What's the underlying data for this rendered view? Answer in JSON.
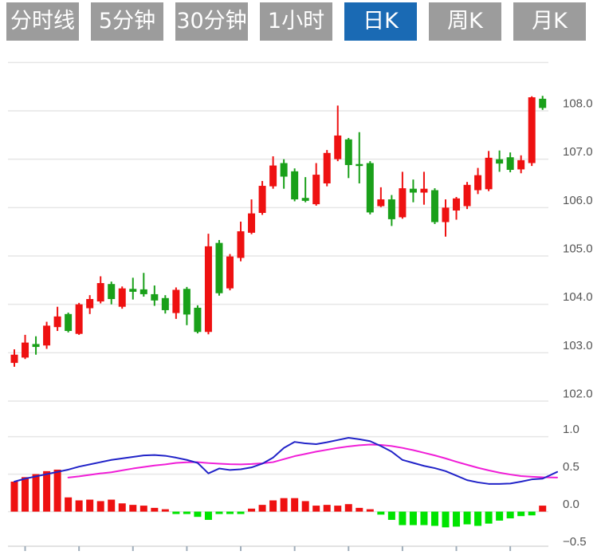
{
  "tabs": {
    "active_index": 4,
    "active_bg": "#1a6ab4",
    "inactive_bg": "#9c9c9c",
    "text_color": "#ffffff",
    "items": [
      {
        "label": "分时线"
      },
      {
        "label": "5分钟"
      },
      {
        "label": "30分钟"
      },
      {
        "label": "1小时"
      },
      {
        "label": "日K"
      },
      {
        "label": "周K"
      },
      {
        "label": "月K"
      }
    ]
  },
  "chart_data": {
    "type": "candlestick+macd",
    "title": "",
    "legend": "none",
    "grid": "on",
    "price_axis": {
      "side": "right",
      "labels": [
        "108.0",
        "107.0",
        "106.0",
        "105.0",
        "104.0",
        "103.0",
        "102.0"
      ],
      "values": [
        108,
        107,
        106,
        105,
        104,
        103,
        102
      ],
      "grid_values": [
        109,
        108,
        107,
        106,
        105,
        104,
        103,
        102
      ],
      "range": [
        101.8,
        109.0
      ]
    },
    "macd_axis": {
      "side": "right",
      "labels": [
        "1.0",
        "0.5",
        "0.0",
        "−0.5"
      ],
      "values": [
        1.0,
        0.5,
        0.0,
        -0.5
      ],
      "grid_values": [
        1.0,
        0.5,
        0.0
      ],
      "range": [
        -0.5,
        1.0
      ]
    },
    "candles": [
      {
        "o": 102.79,
        "h": 103.07,
        "l": 102.71,
        "c": 102.96
      },
      {
        "o": 102.9,
        "h": 103.37,
        "l": 102.87,
        "c": 103.21
      },
      {
        "o": 103.18,
        "h": 103.34,
        "l": 102.96,
        "c": 103.12
      },
      {
        "o": 103.15,
        "h": 103.64,
        "l": 103.08,
        "c": 103.56
      },
      {
        "o": 103.53,
        "h": 103.95,
        "l": 103.45,
        "c": 103.75
      },
      {
        "o": 103.8,
        "h": 103.83,
        "l": 103.42,
        "c": 103.45
      },
      {
        "o": 103.39,
        "h": 104.03,
        "l": 103.37,
        "c": 104.0
      },
      {
        "o": 103.92,
        "h": 104.19,
        "l": 103.8,
        "c": 104.11
      },
      {
        "o": 104.06,
        "h": 104.58,
        "l": 104.02,
        "c": 104.44
      },
      {
        "o": 104.42,
        "h": 104.47,
        "l": 104.0,
        "c": 104.11
      },
      {
        "o": 103.95,
        "h": 104.37,
        "l": 103.91,
        "c": 104.33
      },
      {
        "o": 104.32,
        "h": 104.55,
        "l": 104.1,
        "c": 104.26
      },
      {
        "o": 104.31,
        "h": 104.65,
        "l": 104.16,
        "c": 104.21
      },
      {
        "o": 104.21,
        "h": 104.39,
        "l": 103.97,
        "c": 104.08
      },
      {
        "o": 104.13,
        "h": 104.19,
        "l": 103.81,
        "c": 103.88
      },
      {
        "o": 103.82,
        "h": 104.35,
        "l": 103.7,
        "c": 104.3
      },
      {
        "o": 104.32,
        "h": 104.36,
        "l": 103.57,
        "c": 103.79
      },
      {
        "o": 103.93,
        "h": 103.98,
        "l": 103.4,
        "c": 103.43
      },
      {
        "o": 103.43,
        "h": 105.46,
        "l": 103.38,
        "c": 105.2
      },
      {
        "o": 105.27,
        "h": 105.33,
        "l": 104.18,
        "c": 104.23
      },
      {
        "o": 104.33,
        "h": 105.04,
        "l": 104.29,
        "c": 104.99
      },
      {
        "o": 104.96,
        "h": 105.71,
        "l": 104.89,
        "c": 105.51
      },
      {
        "o": 105.48,
        "h": 106.17,
        "l": 105.45,
        "c": 105.88
      },
      {
        "o": 105.89,
        "h": 106.55,
        "l": 105.85,
        "c": 106.45
      },
      {
        "o": 106.44,
        "h": 107.06,
        "l": 106.39,
        "c": 106.87
      },
      {
        "o": 106.92,
        "h": 107.0,
        "l": 106.39,
        "c": 106.64
      },
      {
        "o": 106.75,
        "h": 106.81,
        "l": 106.13,
        "c": 106.17
      },
      {
        "o": 106.2,
        "h": 106.63,
        "l": 106.11,
        "c": 106.14
      },
      {
        "o": 106.07,
        "h": 106.92,
        "l": 106.04,
        "c": 106.68
      },
      {
        "o": 106.5,
        "h": 107.19,
        "l": 106.44,
        "c": 107.13
      },
      {
        "o": 107.0,
        "h": 108.11,
        "l": 106.96,
        "c": 107.49
      },
      {
        "o": 107.41,
        "h": 107.44,
        "l": 106.61,
        "c": 106.88
      },
      {
        "o": 106.9,
        "h": 107.56,
        "l": 106.5,
        "c": 106.86
      },
      {
        "o": 106.92,
        "h": 106.96,
        "l": 105.86,
        "c": 105.9
      },
      {
        "o": 106.03,
        "h": 106.42,
        "l": 106.01,
        "c": 106.17
      },
      {
        "o": 106.17,
        "h": 106.26,
        "l": 105.62,
        "c": 105.76
      },
      {
        "o": 105.8,
        "h": 106.74,
        "l": 105.77,
        "c": 106.4
      },
      {
        "o": 106.39,
        "h": 106.58,
        "l": 106.11,
        "c": 106.31
      },
      {
        "o": 106.31,
        "h": 106.74,
        "l": 106.06,
        "c": 106.39
      },
      {
        "o": 106.36,
        "h": 106.4,
        "l": 105.66,
        "c": 105.7
      },
      {
        "o": 105.7,
        "h": 106.17,
        "l": 105.4,
        "c": 106.0
      },
      {
        "o": 105.94,
        "h": 106.22,
        "l": 105.75,
        "c": 106.19
      },
      {
        "o": 106.03,
        "h": 106.53,
        "l": 105.97,
        "c": 106.47
      },
      {
        "o": 106.36,
        "h": 106.82,
        "l": 106.28,
        "c": 106.67
      },
      {
        "o": 106.38,
        "h": 107.17,
        "l": 106.34,
        "c": 107.03
      },
      {
        "o": 107.0,
        "h": 107.18,
        "l": 106.74,
        "c": 106.91
      },
      {
        "o": 107.04,
        "h": 107.14,
        "l": 106.73,
        "c": 106.78
      },
      {
        "o": 106.79,
        "h": 107.08,
        "l": 106.71,
        "c": 106.98
      },
      {
        "o": 106.92,
        "h": 108.3,
        "l": 106.86,
        "c": 108.28
      },
      {
        "o": 108.25,
        "h": 108.31,
        "l": 108.02,
        "c": 108.06
      }
    ],
    "macd": {
      "histogram": [
        0.4,
        0.46,
        0.5,
        0.54,
        0.56,
        0.19,
        0.15,
        0.16,
        0.14,
        0.16,
        0.11,
        0.09,
        0.08,
        0.05,
        0.02,
        -0.03,
        -0.03,
        -0.07,
        -0.11,
        -0.03,
        -0.03,
        -0.02,
        0.04,
        0.09,
        0.15,
        0.18,
        0.18,
        0.14,
        0.08,
        0.09,
        0.08,
        0.1,
        0.05,
        0.03,
        -0.04,
        -0.11,
        -0.18,
        -0.18,
        -0.18,
        -0.19,
        -0.21,
        -0.2,
        -0.17,
        -0.19,
        -0.16,
        -0.12,
        -0.09,
        -0.06,
        -0.05,
        0.08
      ],
      "dif": [
        0.4,
        0.44,
        0.47,
        0.5,
        0.53,
        0.56,
        0.6,
        0.63,
        0.66,
        0.69,
        0.71,
        0.73,
        0.75,
        0.755,
        0.745,
        0.72,
        0.69,
        0.65,
        0.51,
        0.575,
        0.555,
        0.565,
        0.59,
        0.64,
        0.72,
        0.85,
        0.93,
        0.91,
        0.9,
        0.925,
        0.955,
        0.985,
        0.965,
        0.94,
        0.875,
        0.8,
        0.69,
        0.65,
        0.61,
        0.58,
        0.54,
        0.48,
        0.42,
        0.39,
        0.37,
        0.37,
        0.375,
        0.4,
        0.43,
        0.44
      ],
      "dea": [
        null,
        null,
        null,
        null,
        null,
        0.455,
        0.47,
        0.49,
        0.51,
        0.525,
        0.55,
        0.575,
        0.595,
        0.615,
        0.63,
        0.65,
        0.658,
        0.66,
        0.648,
        0.64,
        0.633,
        0.63,
        0.635,
        0.645,
        0.66,
        0.7,
        0.74,
        0.77,
        0.8,
        0.825,
        0.85,
        0.87,
        0.885,
        0.895,
        0.89,
        0.875,
        0.85,
        0.82,
        0.785,
        0.75,
        0.71,
        0.665,
        0.625,
        0.585,
        0.55,
        0.52,
        0.495,
        0.475,
        0.465,
        0.458
      ],
      "line_end": {
        "dif": 0.53,
        "dea": 0.455
      }
    },
    "colors": {
      "up": "#ee1111",
      "down": "#1aa01a",
      "hist_up": "#ee1111",
      "hist_down": "#00e400",
      "dif_line": "#2123c8",
      "dea_line": "#f01ed7",
      "grid": "#e6e6e6",
      "axis_line": "#d9d9d9",
      "tick": "#9fadba",
      "axis_text": "#555555"
    }
  }
}
